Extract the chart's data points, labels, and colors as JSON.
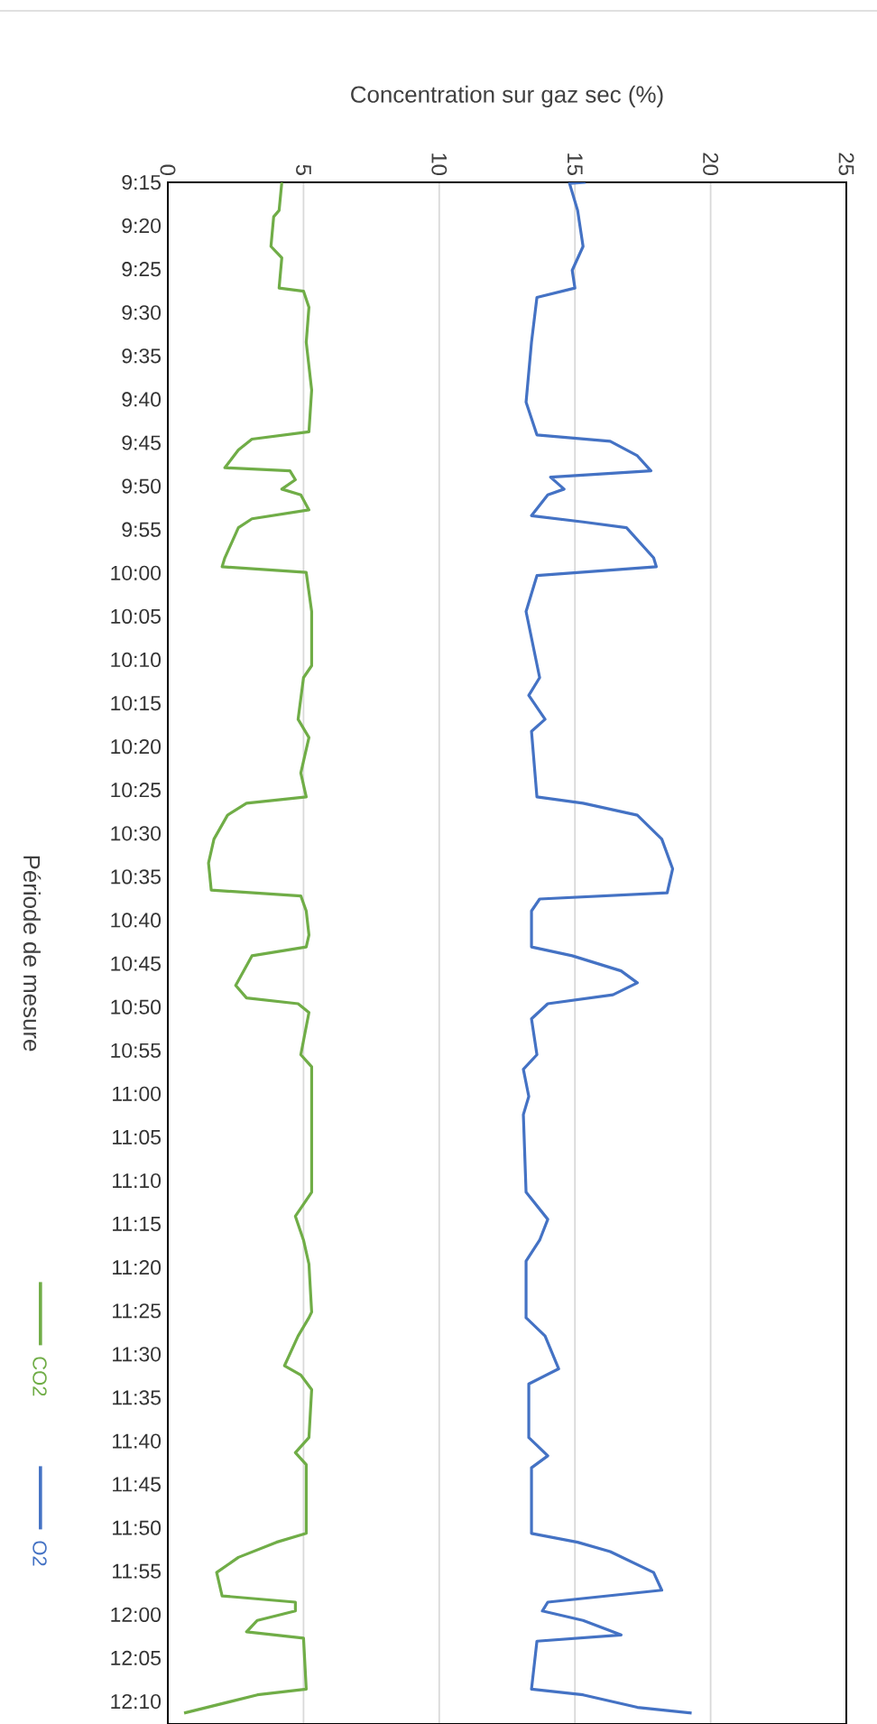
{
  "chart_data": {
    "type": "line",
    "orientation": "horizontal",
    "xlabel": "Concentration sur gaz sec (%)",
    "ylabel": "Période de mesure",
    "xlim": [
      0,
      25
    ],
    "xticks": [
      0,
      5,
      10,
      15,
      20,
      25
    ],
    "ylim": [
      12.21,
      9.25
    ],
    "yticks": [
      {
        "value": 9.25,
        "label": "9:15"
      },
      {
        "value": 9.3333,
        "label": "9:20"
      },
      {
        "value": 9.4167,
        "label": "9:25"
      },
      {
        "value": 9.5,
        "label": "9:30"
      },
      {
        "value": 9.5833,
        "label": "9:35"
      },
      {
        "value": 9.6667,
        "label": "9:40"
      },
      {
        "value": 9.75,
        "label": "9:45"
      },
      {
        "value": 9.8333,
        "label": "9:50"
      },
      {
        "value": 9.9167,
        "label": "9:55"
      },
      {
        "value": 10,
        "label": "10:00"
      },
      {
        "value": 10.0833,
        "label": "10:05"
      },
      {
        "value": 10.1667,
        "label": "10:10"
      },
      {
        "value": 10.25,
        "label": "10:15"
      },
      {
        "value": 10.3333,
        "label": "10:20"
      },
      {
        "value": 10.4167,
        "label": "10:25"
      },
      {
        "value": 10.5,
        "label": "10:30"
      },
      {
        "value": 10.5833,
        "label": "10:35"
      },
      {
        "value": 10.6667,
        "label": "10:40"
      },
      {
        "value": 10.75,
        "label": "10:45"
      },
      {
        "value": 10.8333,
        "label": "10:50"
      },
      {
        "value": 10.9167,
        "label": "10:55"
      },
      {
        "value": 11,
        "label": "11:00"
      },
      {
        "value": 11.0833,
        "label": "11:05"
      },
      {
        "value": 11.1667,
        "label": "11:10"
      },
      {
        "value": 11.25,
        "label": "11:15"
      },
      {
        "value": 11.3333,
        "label": "11:20"
      },
      {
        "value": 11.4167,
        "label": "11:25"
      },
      {
        "value": 11.5,
        "label": "11:30"
      },
      {
        "value": 11.5833,
        "label": "11:35"
      },
      {
        "value": 11.6667,
        "label": "11:40"
      },
      {
        "value": 11.75,
        "label": "11:45"
      },
      {
        "value": 11.8333,
        "label": "11:50"
      },
      {
        "value": 11.9167,
        "label": "11:55"
      },
      {
        "value": 12,
        "label": "12:00"
      },
      {
        "value": 12.0833,
        "label": "12:05"
      },
      {
        "value": 12.1667,
        "label": "12:10"
      }
    ],
    "grid": "x",
    "legend": "left",
    "marker": "none",
    "line_style": "solid",
    "series": [
      {
        "name": "CO2",
        "color": "#70ad47",
        "x": [
          9.25,
          9.304,
          9.316,
          9.373,
          9.395,
          9.453,
          9.459,
          9.49,
          9.557,
          9.649,
          9.729,
          9.743,
          9.764,
          9.798,
          9.804,
          9.821,
          9.839,
          9.85,
          9.879,
          9.896,
          9.913,
          9.971,
          9.988,
          9.999,
          10.074,
          10.178,
          10.201,
          10.281,
          10.316,
          10.384,
          10.43,
          10.442,
          10.465,
          10.511,
          10.557,
          10.609,
          10.62,
          10.649,
          10.695,
          10.718,
          10.735,
          10.792,
          10.816,
          10.827,
          10.844,
          10.925,
          10.948,
          11.04,
          11.189,
          11.235,
          11.281,
          11.327,
          11.419,
          11.43,
          11.465,
          11.522,
          11.54,
          11.568,
          11.66,
          11.689,
          11.712,
          11.844,
          11.861,
          11.89,
          11.919,
          11.964,
          11.976,
          11.993,
          12.011,
          12.033,
          12.045,
          12.143,
          12.154,
          12.189
        ],
        "values": [
          4.2,
          4.1,
          3.9,
          3.8,
          4.2,
          4.1,
          5.0,
          5.2,
          5.1,
          5.3,
          5.2,
          3.1,
          2.6,
          2.1,
          4.5,
          4.7,
          4.2,
          4.9,
          5.2,
          3.1,
          2.6,
          2.1,
          2.0,
          5.1,
          5.3,
          5.3,
          5.0,
          4.8,
          5.2,
          4.9,
          5.1,
          2.9,
          2.2,
          1.7,
          1.5,
          1.6,
          4.9,
          5.1,
          5.2,
          5.1,
          3.1,
          2.5,
          2.9,
          4.8,
          5.2,
          4.9,
          5.3,
          5.3,
          5.3,
          4.7,
          5.0,
          5.2,
          5.3,
          5.2,
          4.8,
          4.3,
          4.9,
          5.3,
          5.2,
          4.7,
          5.1,
          5.1,
          4.0,
          2.6,
          1.8,
          2.0,
          4.7,
          4.7,
          3.3,
          2.9,
          5.0,
          5.1,
          3.3,
          0.6
        ]
      },
      {
        "name": "O2",
        "color": "#4472c4",
        "x": [
          9.25,
          9.252,
          9.304,
          9.373,
          9.419,
          9.453,
          9.471,
          9.557,
          9.672,
          9.735,
          9.747,
          9.775,
          9.804,
          9.816,
          9.839,
          9.85,
          9.89,
          9.902,
          9.913,
          9.971,
          9.988,
          10.005,
          10.074,
          10.201,
          10.235,
          10.281,
          10.304,
          10.43,
          10.442,
          10.465,
          10.511,
          10.568,
          10.614,
          10.626,
          10.649,
          10.695,
          10.718,
          10.735,
          10.764,
          10.787,
          10.81,
          10.827,
          10.856,
          10.925,
          10.953,
          11.005,
          11.04,
          11.189,
          11.241,
          11.281,
          11.321,
          11.419,
          11.43,
          11.465,
          11.528,
          11.557,
          11.66,
          11.695,
          11.718,
          11.844,
          11.861,
          11.879,
          11.919,
          11.953,
          11.976,
          11.993,
          12.011,
          12.039,
          12.051,
          12.143,
          12.154,
          12.178,
          12.189
        ],
        "values": [
          15.4,
          14.8,
          15.1,
          15.3,
          14.9,
          15.0,
          13.6,
          13.4,
          13.2,
          13.6,
          16.3,
          17.3,
          17.8,
          14.1,
          14.6,
          14.0,
          13.4,
          15.3,
          16.9,
          17.9,
          18.0,
          13.6,
          13.2,
          13.7,
          13.3,
          13.9,
          13.4,
          13.6,
          15.3,
          17.3,
          18.2,
          18.6,
          18.4,
          13.7,
          13.4,
          13.4,
          13.4,
          14.9,
          16.7,
          17.3,
          16.4,
          14.0,
          13.4,
          13.6,
          13.1,
          13.3,
          13.1,
          13.2,
          14.0,
          13.7,
          13.2,
          13.2,
          13.2,
          13.9,
          14.4,
          13.3,
          13.3,
          14.0,
          13.4,
          13.4,
          15.1,
          16.3,
          17.9,
          18.2,
          14.0,
          13.8,
          15.3,
          16.7,
          13.6,
          13.4,
          15.3,
          17.3,
          19.3
        ]
      }
    ]
  }
}
